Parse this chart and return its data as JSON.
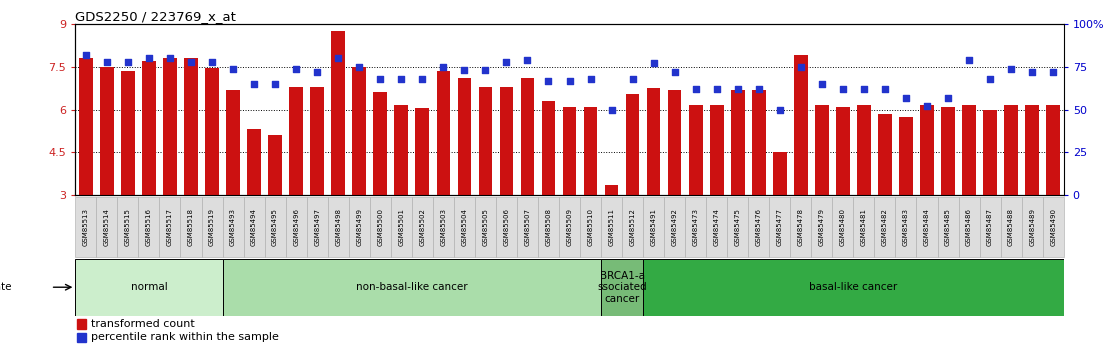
{
  "title": "GDS2250 / 223769_x_at",
  "samples": [
    "GSM85513",
    "GSM85514",
    "GSM85515",
    "GSM85516",
    "GSM85517",
    "GSM85518",
    "GSM85519",
    "GSM85493",
    "GSM85494",
    "GSM85495",
    "GSM85496",
    "GSM85497",
    "GSM85498",
    "GSM85499",
    "GSM85500",
    "GSM85501",
    "GSM85502",
    "GSM85503",
    "GSM85504",
    "GSM85505",
    "GSM85506",
    "GSM85507",
    "GSM85508",
    "GSM85509",
    "GSM85510",
    "GSM85511",
    "GSM85512",
    "GSM85491",
    "GSM85492",
    "GSM85473",
    "GSM85474",
    "GSM85475",
    "GSM85476",
    "GSM85477",
    "GSM85478",
    "GSM85479",
    "GSM85480",
    "GSM85481",
    "GSM85482",
    "GSM85483",
    "GSM85484",
    "GSM85485",
    "GSM85486",
    "GSM85487",
    "GSM85488",
    "GSM85489",
    "GSM85490"
  ],
  "bar_values": [
    7.8,
    7.5,
    7.35,
    7.7,
    7.8,
    7.8,
    7.45,
    6.7,
    5.3,
    5.1,
    6.8,
    6.8,
    8.75,
    7.5,
    6.6,
    6.15,
    6.05,
    7.35,
    7.1,
    6.8,
    6.8,
    7.1,
    6.3,
    6.1,
    6.1,
    3.35,
    6.55,
    6.75,
    6.7,
    6.15,
    6.15,
    6.7,
    6.7,
    4.5,
    7.9,
    6.15,
    6.1,
    6.15,
    5.85,
    5.75,
    6.15,
    6.1,
    6.15,
    6.0,
    6.15,
    6.15,
    6.15
  ],
  "dot_values": [
    82,
    78,
    78,
    80,
    80,
    78,
    78,
    74,
    65,
    65,
    74,
    72,
    80,
    75,
    68,
    68,
    68,
    75,
    73,
    73,
    78,
    79,
    67,
    67,
    68,
    50,
    68,
    77,
    72,
    62,
    62,
    62,
    62,
    50,
    75,
    65,
    62,
    62,
    62,
    57,
    52,
    57,
    79,
    68,
    74,
    72,
    72
  ],
  "disease_groups": [
    {
      "label": "normal",
      "start": 0,
      "end": 7,
      "color": "#d0f0d0"
    },
    {
      "label": "non-basal-like cancer",
      "start": 7,
      "end": 25,
      "color": "#b0e0b0"
    },
    {
      "label": "BRCA1-a\nssociated\ncancer",
      "start": 25,
      "end": 27,
      "color": "#80cc80"
    },
    {
      "label": "basal-like cancer",
      "start": 27,
      "end": 47,
      "color": "#30b030"
    }
  ],
  "ylim": [
    3,
    9
  ],
  "yticks": [
    3,
    4.5,
    6,
    7.5,
    9
  ],
  "ytick_labels": [
    "3",
    "4.5",
    "6",
    "7.5",
    "9"
  ],
  "right_yticks": [
    0,
    25,
    50,
    75,
    100
  ],
  "right_ytick_labels": [
    "0",
    "25",
    "50",
    "75",
    "100%"
  ],
  "bar_color": "#cc1111",
  "dot_color": "#2233cc",
  "background_color": "#ffffff",
  "label_bg_color": "#dddddd",
  "label_border_color": "#aaaaaa"
}
